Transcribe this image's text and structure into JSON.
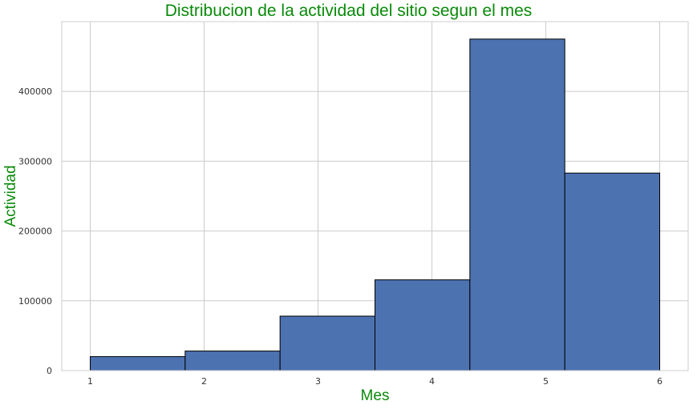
{
  "chart_data": {
    "type": "bar",
    "title": "Distribucion de la actividad del sitio segun el mes",
    "xlabel": "Mes",
    "ylabel": "Actividad",
    "bin_edges": [
      1,
      1.8333,
      2.6667,
      3.5,
      4.3333,
      5.1667,
      6
    ],
    "values": [
      20000,
      28000,
      78000,
      130000,
      475000,
      283000
    ],
    "xlim": [
      0.75,
      6.25
    ],
    "ylim": [
      0,
      500000
    ],
    "xticks": [
      1,
      2,
      3,
      4,
      5,
      6
    ],
    "yticks": [
      0,
      100000,
      200000,
      300000,
      400000
    ],
    "grid": true,
    "bar_color": "#4c72b0",
    "edge_color": "#000000",
    "title_color": "#0a8a0a"
  }
}
